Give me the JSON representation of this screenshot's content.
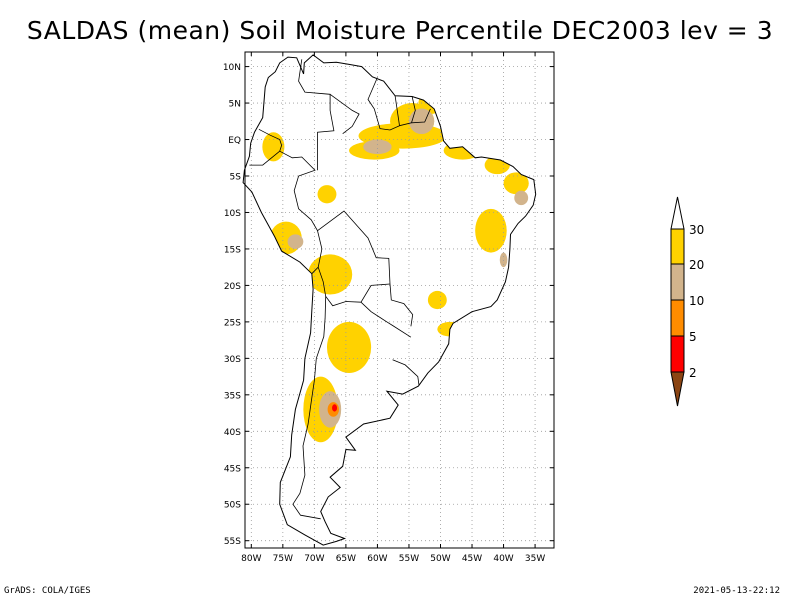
{
  "title": "SALDAS (mean) Soil Moisture Percentile DEC2003 lev = 3",
  "footer": {
    "left": "GrADS: COLA/IGES",
    "right": "2021-05-13-22:12"
  },
  "map": {
    "lon_range": [
      -81,
      -32
    ],
    "lat_range": [
      -56,
      12
    ],
    "lat_ticks": [
      {
        "lat": 10,
        "label": "10N"
      },
      {
        "lat": 5,
        "label": "5N"
      },
      {
        "lat": 0,
        "label": "EQ"
      },
      {
        "lat": -5,
        "label": "5S"
      },
      {
        "lat": -10,
        "label": "10S"
      },
      {
        "lat": -15,
        "label": "15S"
      },
      {
        "lat": -20,
        "label": "20S"
      },
      {
        "lat": -25,
        "label": "25S"
      },
      {
        "lat": -30,
        "label": "30S"
      },
      {
        "lat": -35,
        "label": "35S"
      },
      {
        "lat": -40,
        "label": "40S"
      },
      {
        "lat": -45,
        "label": "45S"
      },
      {
        "lat": -50,
        "label": "50S"
      },
      {
        "lat": -55,
        "label": "55S"
      }
    ],
    "lon_ticks": [
      {
        "lon": -80,
        "label": "80W"
      },
      {
        "lon": -75,
        "label": "75W"
      },
      {
        "lon": -70,
        "label": "70W"
      },
      {
        "lon": -65,
        "label": "65W"
      },
      {
        "lon": -60,
        "label": "60W"
      },
      {
        "lon": -55,
        "label": "55W"
      },
      {
        "lon": -50,
        "label": "50W"
      },
      {
        "lon": -45,
        "label": "45W"
      },
      {
        "lon": -40,
        "label": "40W"
      },
      {
        "lon": -35,
        "label": "35W"
      }
    ],
    "coastline": [
      [
        -77.3,
        8.5
      ],
      [
        -77.8,
        7.2
      ],
      [
        -78.2,
        3.0
      ],
      [
        -79.5,
        1.0
      ],
      [
        -80.1,
        -0.5
      ],
      [
        -80.3,
        -2.3
      ],
      [
        -81.1,
        -4.2
      ],
      [
        -81.3,
        -5.9
      ],
      [
        -79.9,
        -7.2
      ],
      [
        -78.4,
        -10.0
      ],
      [
        -76.3,
        -13.3
      ],
      [
        -75.2,
        -15.3
      ],
      [
        -72.3,
        -16.8
      ],
      [
        -70.4,
        -18.4
      ],
      [
        -70.2,
        -20.5
      ],
      [
        -70.4,
        -23.5
      ],
      [
        -70.6,
        -26.5
      ],
      [
        -71.5,
        -30.0
      ],
      [
        -71.7,
        -33.0
      ],
      [
        -73.0,
        -37.0
      ],
      [
        -73.6,
        -40.5
      ],
      [
        -73.8,
        -43.5
      ],
      [
        -75.4,
        -47.0
      ],
      [
        -75.5,
        -50.0
      ],
      [
        -74.3,
        -52.8
      ],
      [
        -71.5,
        -54.2
      ],
      [
        -68.6,
        -55.6
      ],
      [
        -66.5,
        -55.1
      ],
      [
        -65.2,
        -54.7
      ],
      [
        -67.4,
        -54.0
      ],
      [
        -68.3,
        -52.4
      ],
      [
        -69.0,
        -51.0
      ],
      [
        -67.8,
        -49.0
      ],
      [
        -65.9,
        -47.7
      ],
      [
        -67.5,
        -46.3
      ],
      [
        -65.5,
        -44.8
      ],
      [
        -65.0,
        -42.5
      ],
      [
        -63.5,
        -42.6
      ],
      [
        -65.0,
        -40.8
      ],
      [
        -62.2,
        -39.0
      ],
      [
        -58.0,
        -38.2
      ],
      [
        -56.7,
        -36.4
      ],
      [
        -58.5,
        -34.5
      ],
      [
        -56.0,
        -34.9
      ],
      [
        -53.5,
        -33.8
      ],
      [
        -52.0,
        -32.0
      ],
      [
        -50.3,
        -30.5
      ],
      [
        -48.7,
        -28.0
      ],
      [
        -48.5,
        -26.0
      ],
      [
        -48.0,
        -25.2
      ],
      [
        -45.0,
        -23.6
      ],
      [
        -42.0,
        -22.9
      ],
      [
        -41.0,
        -22.0
      ],
      [
        -39.7,
        -19.5
      ],
      [
        -39.2,
        -17.5
      ],
      [
        -39.0,
        -15.0
      ],
      [
        -38.9,
        -13.0
      ],
      [
        -37.7,
        -11.5
      ],
      [
        -36.5,
        -10.5
      ],
      [
        -35.3,
        -9.0
      ],
      [
        -34.9,
        -7.5
      ],
      [
        -35.2,
        -5.5
      ],
      [
        -37.2,
        -4.8
      ],
      [
        -38.5,
        -3.7
      ],
      [
        -40.5,
        -2.8
      ],
      [
        -43.5,
        -2.4
      ],
      [
        -44.5,
        -2.5
      ],
      [
        -46.5,
        -1.0
      ],
      [
        -48.5,
        -1.2
      ],
      [
        -49.5,
        -0.2
      ],
      [
        -50.0,
        1.8
      ],
      [
        -51.0,
        4.2
      ],
      [
        -52.7,
        5.4
      ],
      [
        -54.5,
        5.9
      ],
      [
        -57.2,
        6.0
      ],
      [
        -59.0,
        8.0
      ],
      [
        -60.8,
        8.6
      ],
      [
        -62.5,
        10.0
      ],
      [
        -64.5,
        10.3
      ],
      [
        -66.5,
        10.6
      ],
      [
        -68.5,
        10.5
      ],
      [
        -70.2,
        11.6
      ],
      [
        -71.6,
        10.5
      ],
      [
        -71.7,
        9.0
      ],
      [
        -72.8,
        11.2
      ],
      [
        -74.2,
        11.3
      ],
      [
        -75.5,
        10.5
      ],
      [
        -76.2,
        9.3
      ],
      [
        -77.3,
        8.5
      ]
    ],
    "borders": [
      [
        [
          -72.0,
          11.0
        ],
        [
          -72.5,
          8.0
        ],
        [
          -71.5,
          6.5
        ],
        [
          -67.5,
          6.2
        ],
        [
          -67.5,
          4.0
        ],
        [
          -66.9,
          1.2
        ],
        [
          -69.5,
          1.0
        ],
        [
          -69.5,
          -4.2
        ]
      ],
      [
        [
          -78.8,
          1.4
        ],
        [
          -77.0,
          0.6
        ],
        [
          -75.5,
          0.0
        ],
        [
          -75.2,
          -0.8
        ],
        [
          -75.5,
          -1.6
        ]
      ],
      [
        [
          -75.5,
          -1.6
        ],
        [
          -78.2,
          -3.5
        ],
        [
          -80.3,
          -3.5
        ]
      ],
      [
        [
          -75.5,
          -1.6
        ],
        [
          -73.5,
          -2.5
        ],
        [
          -72.0,
          -2.4
        ],
        [
          -69.9,
          -4.2
        ],
        [
          -72.5,
          -5.0
        ],
        [
          -73.2,
          -7.0
        ],
        [
          -72.5,
          -9.5
        ],
        [
          -70.5,
          -11.0
        ],
        [
          -69.5,
          -12.5
        ],
        [
          -68.8,
          -15.0
        ],
        [
          -69.4,
          -17.5
        ],
        [
          -70.4,
          -18.4
        ]
      ],
      [
        [
          -69.5,
          -12.5
        ],
        [
          -65.3,
          -9.8
        ],
        [
          -61.5,
          -13.5
        ],
        [
          -60.2,
          -16.2
        ],
        [
          -58.2,
          -16.3
        ],
        [
          -58.0,
          -19.8
        ]
      ],
      [
        [
          -69.4,
          -17.5
        ],
        [
          -68.6,
          -19.5
        ],
        [
          -68.2,
          -21.5
        ],
        [
          -67.1,
          -22.8
        ],
        [
          -65.0,
          -22.2
        ],
        [
          -62.6,
          -22.3
        ],
        [
          -61.0,
          -20.0
        ],
        [
          -58.0,
          -19.8
        ]
      ],
      [
        [
          -68.2,
          -21.5
        ],
        [
          -68.3,
          -24.5
        ],
        [
          -68.5,
          -27.0
        ],
        [
          -69.7,
          -30.0
        ],
        [
          -70.0,
          -33.0
        ],
        [
          -70.5,
          -36.0
        ],
        [
          -71.0,
          -39.0
        ],
        [
          -71.8,
          -42.0
        ],
        [
          -71.5,
          -46.0
        ],
        [
          -72.3,
          -48.5
        ],
        [
          -73.4,
          -50.0
        ],
        [
          -72.2,
          -51.5
        ],
        [
          -69.0,
          -52.0
        ]
      ],
      [
        [
          -62.6,
          -22.3
        ],
        [
          -61.0,
          -23.6
        ],
        [
          -58.5,
          -25.0
        ],
        [
          -57.6,
          -25.5
        ],
        [
          -54.7,
          -27.1
        ]
      ],
      [
        [
          -58.0,
          -19.8
        ],
        [
          -57.8,
          -22.0
        ],
        [
          -55.8,
          -22.5
        ],
        [
          -54.4,
          -24.0
        ],
        [
          -54.7,
          -25.6
        ]
      ],
      [
        [
          -57.6,
          -30.2
        ],
        [
          -55.6,
          -30.9
        ],
        [
          -53.6,
          -32.5
        ],
        [
          -53.4,
          -33.7
        ]
      ],
      [
        [
          -60.0,
          8.5
        ],
        [
          -61.5,
          5.5
        ],
        [
          -60.5,
          4.2
        ],
        [
          -59.6,
          1.5
        ],
        [
          -58.0,
          1.3
        ],
        [
          -56.5,
          1.9
        ]
      ],
      [
        [
          -56.5,
          1.9
        ],
        [
          -57.2,
          6.0
        ]
      ],
      [
        [
          -56.5,
          1.9
        ],
        [
          -54.6,
          2.3
        ],
        [
          -54.0,
          4.0
        ],
        [
          -54.5,
          5.9
        ]
      ],
      [
        [
          -54.6,
          2.3
        ],
        [
          -52.5,
          2.4
        ],
        [
          -51.6,
          4.2
        ]
      ],
      [
        [
          -67.5,
          6.2
        ],
        [
          -64.0,
          4.0
        ],
        [
          -62.9,
          3.5
        ],
        [
          -64.0,
          1.8
        ],
        [
          -65.5,
          0.8
        ]
      ]
    ],
    "moisture_patches": [
      {
        "lon": -56.0,
        "lat": 0.5,
        "w": 14.0,
        "h": 3.5,
        "cat": "20-30"
      },
      {
        "lon": -54.5,
        "lat": 2.5,
        "w": 7.0,
        "h": 5.0,
        "cat": "20-30"
      },
      {
        "lon": -51.5,
        "lat": 5.0,
        "w": 4.0,
        "h": 3.0,
        "cat": "20-30"
      },
      {
        "lon": -46.5,
        "lat": -1.5,
        "w": 6.0,
        "h": 2.5,
        "cat": "20-30"
      },
      {
        "lon": -41.0,
        "lat": -3.5,
        "w": 4.0,
        "h": 2.5,
        "cat": "20-30"
      },
      {
        "lon": -38.0,
        "lat": -6.0,
        "w": 4.0,
        "h": 3.0,
        "cat": "20-30"
      },
      {
        "lon": -76.5,
        "lat": -1.0,
        "w": 3.5,
        "h": 4.0,
        "cat": "20-30"
      },
      {
        "lon": -60.5,
        "lat": -1.5,
        "w": 8.0,
        "h": 2.5,
        "cat": "20-30"
      },
      {
        "lon": -68.0,
        "lat": -7.5,
        "w": 3.0,
        "h": 2.5,
        "cat": "20-30"
      },
      {
        "lon": -74.5,
        "lat": -13.5,
        "w": 5.0,
        "h": 4.5,
        "cat": "20-30"
      },
      {
        "lon": -67.5,
        "lat": -18.5,
        "w": 7.0,
        "h": 5.5,
        "cat": "20-30"
      },
      {
        "lon": -42.0,
        "lat": -12.5,
        "w": 5.0,
        "h": 6.0,
        "cat": "20-30"
      },
      {
        "lon": -64.5,
        "lat": -28.5,
        "w": 7.0,
        "h": 7.0,
        "cat": "20-30"
      },
      {
        "lon": -69.0,
        "lat": -37.0,
        "w": 5.5,
        "h": 9.0,
        "cat": "20-30"
      },
      {
        "lon": -48.5,
        "lat": -26.0,
        "w": 4.0,
        "h": 2.0,
        "cat": "20-30"
      },
      {
        "lon": -50.5,
        "lat": -22.0,
        "w": 3.0,
        "h": 2.5,
        "cat": "20-30"
      },
      {
        "lon": -53.0,
        "lat": 2.5,
        "w": 4.0,
        "h": 3.5,
        "cat": "10-20"
      },
      {
        "lon": -60.0,
        "lat": -1.0,
        "w": 4.5,
        "h": 2.0,
        "cat": "10-20"
      },
      {
        "lon": -73.0,
        "lat": -14.0,
        "w": 2.5,
        "h": 2.0,
        "cat": "10-20"
      },
      {
        "lon": -67.5,
        "lat": -37.0,
        "w": 3.5,
        "h": 5.0,
        "cat": "10-20"
      },
      {
        "lon": -37.2,
        "lat": -8.0,
        "w": 2.2,
        "h": 2.0,
        "cat": "10-20"
      },
      {
        "lon": -40.0,
        "lat": -16.5,
        "w": 1.2,
        "h": 2.0,
        "cat": "10-20"
      },
      {
        "lon": -67.0,
        "lat": -37.0,
        "w": 1.8,
        "h": 2.0,
        "cat": "5-10"
      },
      {
        "lon": -66.8,
        "lat": -36.8,
        "w": 0.8,
        "h": 1.0,
        "cat": "2-5"
      }
    ]
  },
  "legend": {
    "labels": [
      "30",
      "20",
      "10",
      "5",
      "2"
    ],
    "colors": {
      "gt30": "#ffffff",
      "20-30": "#ffd200",
      "10-20": "#d2b48c",
      "5-10": "#ff8c00",
      "2-5": "#ff0000",
      "lt2": "#8b4513"
    }
  }
}
